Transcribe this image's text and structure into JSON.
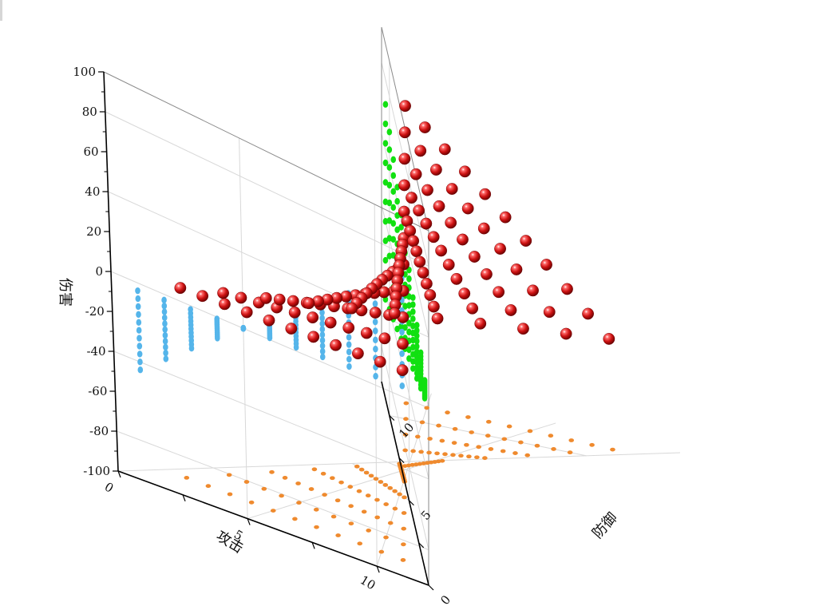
{
  "chart_data": {
    "type": "scatter3d",
    "axes": {
      "x": {
        "label": "攻击",
        "range": [
          0,
          12
        ],
        "ticks": [
          0,
          5,
          10
        ]
      },
      "y": {
        "label": "防御",
        "range": [
          0,
          12
        ],
        "ticks": [
          0,
          5,
          10
        ]
      },
      "z": {
        "label": "伤害",
        "range": [
          -100,
          100
        ],
        "ticks": [
          -100,
          -80,
          -60,
          -40,
          -20,
          0,
          20,
          40,
          60,
          80,
          100
        ]
      }
    },
    "grid": true,
    "grid_lines": {
      "x": [
        0,
        5,
        10
      ],
      "y": [
        0,
        5,
        10
      ],
      "z": [
        -80,
        -40,
        0,
        40,
        80
      ]
    },
    "series": [
      {
        "role": "points",
        "color": "#cc1111",
        "x_values": [
          1,
          2,
          3,
          4,
          5,
          6,
          7,
          8,
          9,
          10,
          11
        ],
        "y_values": [
          1,
          2,
          3,
          4,
          5,
          6,
          7,
          8,
          9,
          10,
          11
        ],
        "z_formula": "z = x * y - 5 * y (approx.)"
      },
      {
        "role": "projection-xz",
        "color": "#55b5ea"
      },
      {
        "role": "projection-yz",
        "color": "#11e011"
      },
      {
        "role": "projection-xy",
        "color": "#ef8a2e"
      }
    ]
  }
}
